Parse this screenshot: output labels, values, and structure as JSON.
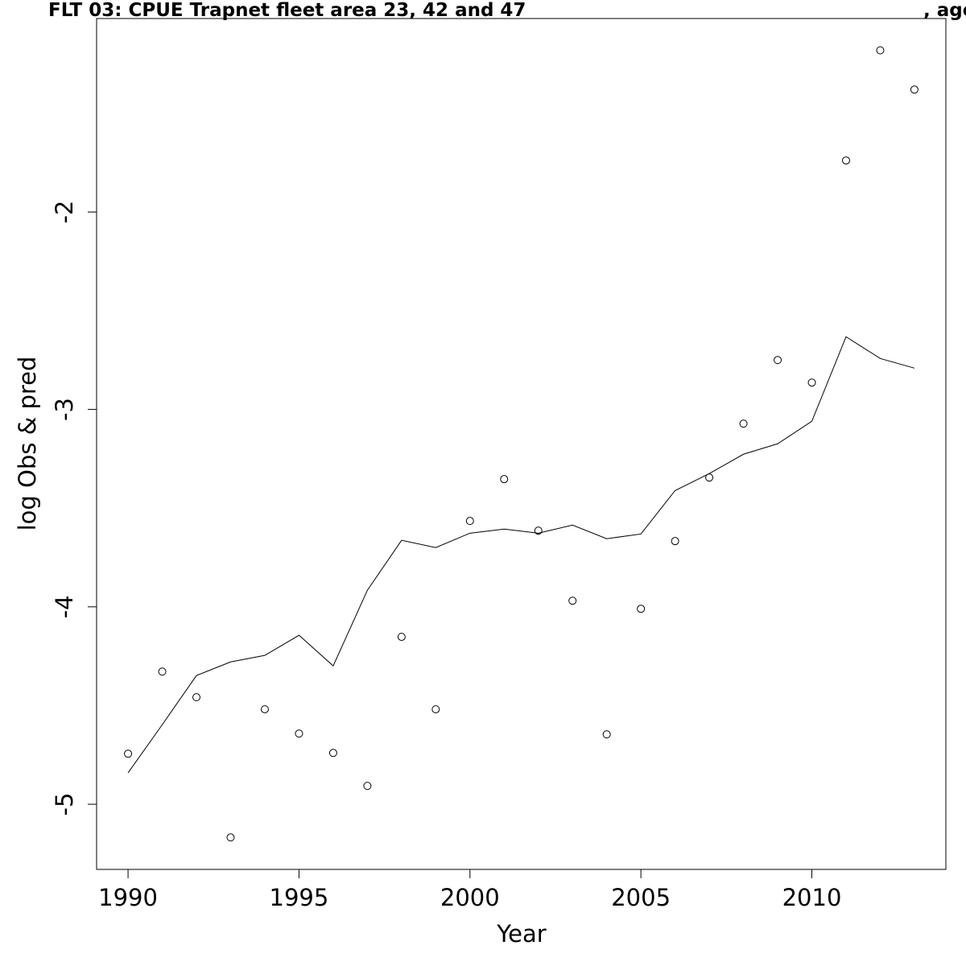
{
  "chart_data": {
    "type": "line",
    "title": "FLT 03: CPUE Trapnet fleet area 23, 42 and 47",
    "title_right": ", age",
    "x_label": "Year",
    "y_label": "log Obs & pred",
    "x": [
      1990,
      1991,
      1992,
      1993,
      1994,
      1995,
      1996,
      1997,
      1998,
      1999,
      2000,
      2001,
      2002,
      2003,
      2004,
      2005,
      2006,
      2007,
      2008,
      2009,
      2010,
      2011,
      2012,
      2013
    ],
    "series": [
      {
        "mode": "markers",
        "color": "#000000",
        "values": [
          -4.744,
          -4.328,
          -4.458,
          -5.168,
          -4.519,
          -4.642,
          -4.74,
          -4.907,
          -4.152,
          -4.519,
          -3.565,
          -3.353,
          -3.614,
          -3.969,
          -4.646,
          -4.01,
          -3.667,
          -3.345,
          -3.072,
          -2.75,
          -2.864,
          -1.739,
          -1.181,
          -1.38
        ]
      },
      {
        "mode": "lines",
        "color": "#000000",
        "values": [
          -4.841,
          -4.597,
          -4.348,
          -4.279,
          -4.246,
          -4.144,
          -4.299,
          -3.916,
          -3.663,
          -3.7,
          -3.627,
          -3.606,
          -3.627,
          -3.586,
          -3.655,
          -3.631,
          -3.411,
          -3.325,
          -3.227,
          -3.174,
          -3.06,
          -2.632,
          -2.742,
          -2.791
        ]
      }
    ],
    "xlim": [
      1989.08,
      2013.92
    ],
    "ylim": [
      -5.33,
      -1.02
    ],
    "xticks": [
      1990,
      1995,
      2000,
      2005,
      2010
    ],
    "yticks": [
      -5,
      -4,
      -3,
      -2
    ],
    "grid": false
  }
}
